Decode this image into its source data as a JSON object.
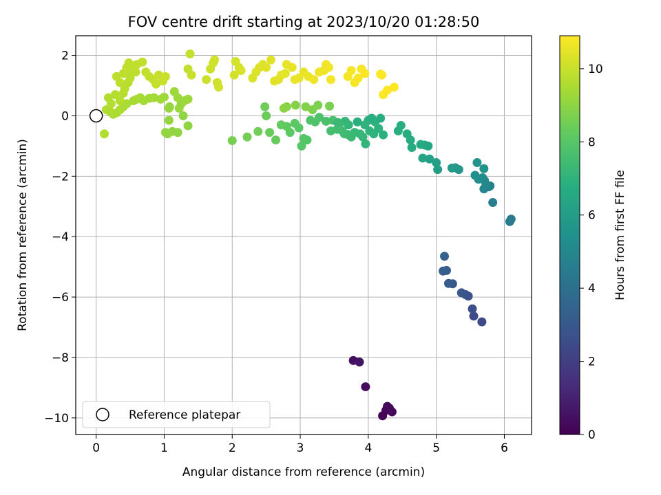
{
  "chart_data": {
    "type": "scatter",
    "title": "FOV centre drift starting at 2023/10/20 01:28:50",
    "xlabel": "Angular distance from reference (arcmin)",
    "ylabel": "Rotation from reference (arcmin)",
    "xlim": [
      -0.3,
      6.4
    ],
    "ylim": [
      -10.55,
      2.65
    ],
    "xticks": [
      "0",
      "1",
      "2",
      "3",
      "4",
      "5",
      "6"
    ],
    "yticks": [
      "2",
      "0",
      "−2",
      "−4",
      "−6",
      "−8",
      "−10"
    ],
    "grid": true,
    "legend": {
      "position": "lower-left",
      "entry": "Reference platepar"
    },
    "reference_point": {
      "x": 0,
      "y": 0
    },
    "colorbar": {
      "label": "Hours from first FF file",
      "min": 0,
      "max": 10.9,
      "ticks": [
        "0",
        "2",
        "4",
        "6",
        "8",
        "10"
      ],
      "colormap": "viridis"
    },
    "points": [
      [
        4.21,
        -9.93,
        0.05
      ],
      [
        4.26,
        -9.75,
        0.1
      ],
      [
        4.28,
        -9.62,
        0.15
      ],
      [
        4.31,
        -9.68,
        0.2
      ],
      [
        4.35,
        -9.8,
        0.25
      ],
      [
        3.96,
        -8.97,
        0.35
      ],
      [
        3.78,
        -8.1,
        0.45
      ],
      [
        3.87,
        -8.15,
        0.55
      ],
      [
        5.67,
        -6.82,
        2.4
      ],
      [
        5.55,
        -6.63,
        2.5
      ],
      [
        5.53,
        -6.39,
        2.6
      ],
      [
        5.47,
        -5.97,
        2.7
      ],
      [
        5.43,
        -5.92,
        2.8
      ],
      [
        5.37,
        -5.86,
        2.9
      ],
      [
        5.24,
        -5.56,
        3.0
      ],
      [
        5.18,
        -5.55,
        3.1
      ],
      [
        5.15,
        -5.12,
        3.2
      ],
      [
        5.1,
        -5.14,
        3.3
      ],
      [
        5.12,
        -4.65,
        3.4
      ],
      [
        6.08,
        -3.5,
        4.4
      ],
      [
        6.1,
        -3.42,
        4.5
      ],
      [
        5.83,
        -2.87,
        4.6
      ],
      [
        5.79,
        -2.32,
        4.7
      ],
      [
        5.77,
        -2.35,
        4.8
      ],
      [
        5.7,
        -2.42,
        4.9
      ],
      [
        5.73,
        -2.3,
        5.0
      ],
      [
        5.71,
        -2.15,
        5.1
      ],
      [
        5.68,
        -2.05,
        5.2
      ],
      [
        5.62,
        -2.1,
        5.3
      ],
      [
        5.57,
        -1.97,
        5.4
      ],
      [
        5.7,
        -1.75,
        5.5
      ],
      [
        5.6,
        -1.55,
        5.6
      ],
      [
        5.33,
        -1.78,
        5.7
      ],
      [
        5.28,
        -1.72,
        5.8
      ],
      [
        5.23,
        -1.73,
        5.9
      ],
      [
        5.02,
        -1.78,
        6.0
      ],
      [
        5.0,
        -1.55,
        6.1
      ],
      [
        4.9,
        -1.43,
        6.2
      ],
      [
        4.8,
        -1.4,
        6.3
      ],
      [
        4.88,
        -1.0,
        6.4
      ],
      [
        4.83,
        -0.97,
        6.5
      ],
      [
        4.77,
        -0.95,
        6.6
      ],
      [
        4.64,
        -1.05,
        6.65
      ],
      [
        4.62,
        -0.8,
        6.7
      ],
      [
        4.57,
        -0.6,
        6.75
      ],
      [
        4.48,
        -0.32,
        6.8
      ],
      [
        4.44,
        -0.5,
        6.85
      ],
      [
        4.22,
        -0.63,
        6.9
      ],
      [
        4.15,
        -0.42,
        6.95
      ],
      [
        4.08,
        -0.6,
        7.0
      ],
      [
        4.02,
        -0.5,
        7.05
      ],
      [
        3.96,
        -0.93,
        7.1
      ],
      [
        3.92,
        -0.7,
        7.15
      ],
      [
        3.88,
        -0.6,
        7.2
      ],
      [
        3.8,
        -0.55,
        7.25
      ],
      [
        3.75,
        -0.7,
        7.3
      ],
      [
        3.7,
        -0.62,
        7.35
      ],
      [
        3.65,
        -0.6,
        7.4
      ],
      [
        3.62,
        -0.5,
        7.45
      ],
      [
        3.58,
        -0.25,
        7.5
      ],
      [
        3.54,
        -0.45,
        7.55
      ],
      [
        3.45,
        -0.5,
        7.6
      ],
      [
        3.48,
        -0.15,
        7.65
      ],
      [
        3.38,
        -0.18,
        7.7
      ],
      [
        3.28,
        -0.05,
        7.75
      ],
      [
        3.22,
        -0.2,
        7.8
      ],
      [
        3.15,
        -0.15,
        7.85
      ],
      [
        3.1,
        -0.8,
        7.9
      ],
      [
        3.05,
        -0.75,
        7.95
      ],
      [
        3.02,
        -1.0,
        8.0
      ],
      [
        2.98,
        -0.4,
        8.05
      ],
      [
        2.92,
        -0.25,
        8.1
      ],
      [
        2.85,
        -0.55,
        8.15
      ],
      [
        2.8,
        -0.35,
        8.2
      ],
      [
        2.72,
        -0.3,
        8.25
      ],
      [
        2.64,
        -0.8,
        8.3
      ],
      [
        2.55,
        -0.55,
        8.35
      ],
      [
        2.5,
        0.0,
        8.4
      ],
      [
        2.48,
        0.3,
        8.45
      ],
      [
        2.38,
        -0.52,
        8.5
      ],
      [
        2.22,
        -0.7,
        8.55
      ],
      [
        2.0,
        -0.82,
        8.6
      ],
      [
        3.43,
        0.32,
        8.65
      ],
      [
        3.26,
        0.35,
        8.7
      ],
      [
        3.18,
        0.2,
        8.75
      ],
      [
        3.08,
        0.3,
        8.8
      ],
      [
        2.93,
        0.35,
        8.85
      ],
      [
        2.8,
        0.3,
        8.9
      ],
      [
        2.76,
        0.25,
        8.95
      ],
      [
        3.84,
        -0.2,
        6.85
      ],
      [
        4.0,
        -0.15,
        6.9
      ],
      [
        4.1,
        -0.2,
        6.95
      ],
      [
        3.95,
        -0.3,
        7.0
      ],
      [
        3.71,
        -0.3,
        7.1
      ],
      [
        3.66,
        -0.18,
        7.2
      ],
      [
        3.55,
        -0.22,
        7.3
      ],
      [
        4.18,
        -0.08,
        6.8
      ],
      [
        4.05,
        -0.08,
        6.85
      ],
      [
        1.35,
        -0.33,
        9.0
      ],
      [
        1.28,
        0.0,
        9.02
      ],
      [
        1.2,
        -0.55,
        9.04
      ],
      [
        1.12,
        -0.52,
        9.06
      ],
      [
        1.05,
        -0.6,
        9.08
      ],
      [
        1.02,
        -0.55,
        9.1
      ],
      [
        1.07,
        -0.15,
        9.12
      ],
      [
        1.07,
        0.25,
        9.14
      ],
      [
        1.08,
        0.3,
        9.16
      ],
      [
        1.22,
        0.25,
        9.18
      ],
      [
        1.25,
        0.4,
        9.2
      ],
      [
        1.3,
        0.5,
        9.22
      ],
      [
        1.35,
        0.55,
        9.24
      ],
      [
        1.2,
        0.6,
        9.26
      ],
      [
        1.15,
        0.8,
        9.28
      ],
      [
        1.0,
        0.62,
        9.3
      ],
      [
        0.95,
        0.55,
        9.32
      ],
      [
        0.85,
        0.6,
        9.34
      ],
      [
        0.78,
        0.58,
        9.36
      ],
      [
        0.7,
        0.5,
        9.38
      ],
      [
        0.65,
        0.6,
        9.4
      ],
      [
        0.6,
        0.55,
        9.42
      ],
      [
        0.55,
        0.5,
        9.44
      ],
      [
        0.45,
        0.4,
        9.46
      ],
      [
        0.4,
        0.3,
        9.48
      ],
      [
        0.35,
        0.2,
        9.5
      ],
      [
        0.3,
        0.1,
        9.52
      ],
      [
        0.25,
        0.05,
        9.54
      ],
      [
        0.2,
        0.15,
        9.56
      ],
      [
        0.15,
        0.2,
        9.58
      ],
      [
        0.12,
        -0.6,
        9.6
      ],
      [
        0.18,
        0.6,
        9.62
      ],
      [
        0.22,
        0.4,
        9.64
      ],
      [
        0.28,
        0.7,
        9.66
      ],
      [
        0.35,
        0.5,
        9.68
      ],
      [
        0.4,
        0.75,
        9.7
      ],
      [
        0.42,
        0.9,
        9.72
      ],
      [
        0.47,
        1.1,
        9.74
      ],
      [
        0.5,
        1.25,
        9.76
      ],
      [
        0.52,
        1.45,
        9.78
      ],
      [
        0.55,
        1.6,
        9.8
      ],
      [
        0.58,
        1.45,
        9.82
      ],
      [
        0.6,
        1.7,
        9.84
      ],
      [
        0.68,
        1.78,
        9.86
      ],
      [
        0.73,
        1.45,
        9.88
      ],
      [
        0.78,
        1.3,
        9.9
      ],
      [
        0.84,
        1.2,
        9.92
      ],
      [
        0.88,
        1.05,
        9.94
      ],
      [
        0.92,
        1.35,
        9.96
      ],
      [
        0.98,
        1.15,
        9.98
      ],
      [
        1.02,
        1.3,
        10.0
      ],
      [
        0.3,
        1.3,
        9.78
      ],
      [
        0.35,
        1.1,
        9.8
      ],
      [
        0.4,
        1.4,
        9.82
      ],
      [
        0.45,
        1.6,
        9.84
      ],
      [
        0.48,
        1.75,
        9.86
      ],
      [
        1.35,
        1.55,
        9.9
      ],
      [
        1.38,
        2.05,
        9.95
      ],
      [
        1.4,
        1.35,
        10.0
      ],
      [
        1.62,
        1.2,
        10.05
      ],
      [
        1.68,
        1.55,
        10.08
      ],
      [
        1.72,
        1.75,
        10.1
      ],
      [
        1.74,
        1.85,
        10.12
      ],
      [
        1.78,
        1.1,
        10.14
      ],
      [
        1.8,
        0.95,
        10.16
      ],
      [
        2.03,
        1.35,
        10.2
      ],
      [
        2.05,
        1.8,
        10.22
      ],
      [
        2.1,
        1.6,
        10.24
      ],
      [
        2.13,
        1.5,
        10.26
      ],
      [
        2.3,
        1.25,
        10.3
      ],
      [
        2.35,
        1.45,
        10.32
      ],
      [
        2.4,
        1.6,
        10.34
      ],
      [
        2.45,
        1.7,
        10.36
      ],
      [
        2.5,
        1.6,
        10.38
      ],
      [
        2.57,
        1.85,
        10.4
      ],
      [
        2.62,
        1.15,
        10.42
      ],
      [
        2.68,
        1.2,
        10.44
      ],
      [
        2.72,
        1.35,
        10.46
      ],
      [
        2.78,
        1.4,
        10.48
      ],
      [
        2.8,
        1.7,
        10.5
      ],
      [
        2.88,
        1.6,
        10.52
      ],
      [
        2.92,
        1.2,
        10.54
      ],
      [
        2.98,
        1.25,
        10.56
      ],
      [
        3.05,
        1.45,
        10.58
      ],
      [
        3.12,
        1.3,
        10.6
      ],
      [
        3.2,
        1.2,
        10.62
      ],
      [
        3.28,
        1.45,
        10.64
      ],
      [
        3.35,
        1.5,
        10.66
      ],
      [
        3.38,
        1.7,
        10.68
      ],
      [
        3.42,
        1.6,
        10.7
      ],
      [
        3.45,
        1.2,
        10.72
      ],
      [
        3.7,
        1.3,
        10.74
      ],
      [
        3.75,
        1.5,
        10.76
      ],
      [
        3.8,
        1.1,
        10.78
      ],
      [
        3.85,
        1.25,
        10.8
      ],
      [
        3.9,
        1.55,
        10.82
      ],
      [
        3.95,
        1.4,
        10.84
      ],
      [
        4.18,
        1.38,
        10.86
      ],
      [
        4.22,
        0.7,
        10.88
      ],
      [
        4.28,
        0.85,
        10.9
      ],
      [
        4.38,
        0.95,
        10.92
      ],
      [
        4.2,
        1.35,
        10.94
      ]
    ]
  }
}
